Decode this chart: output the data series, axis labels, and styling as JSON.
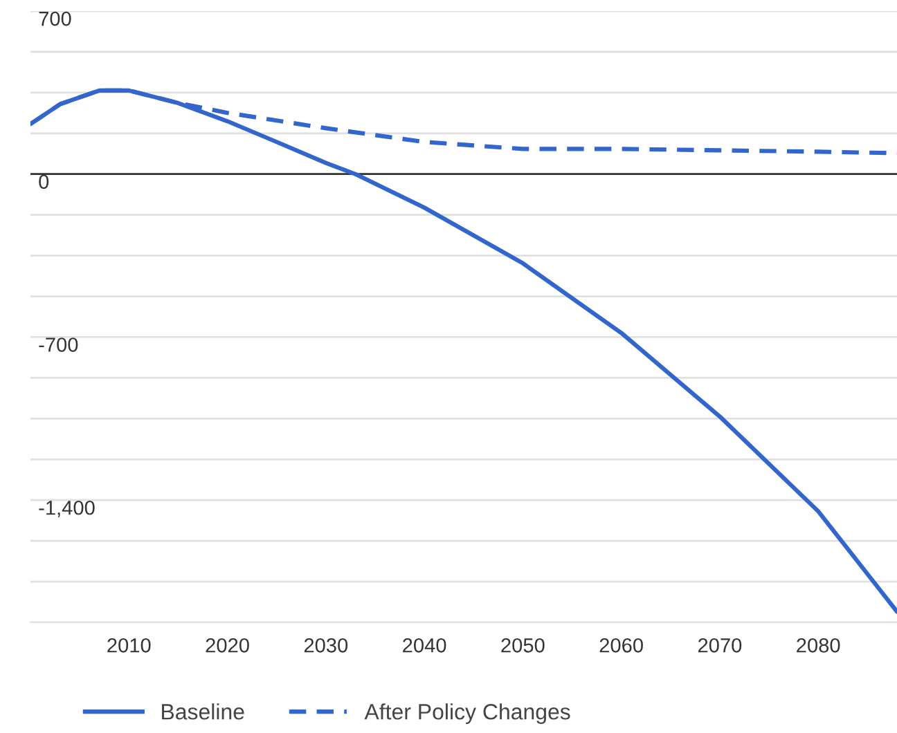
{
  "chart_data": {
    "type": "line",
    "x": [
      2000,
      2003,
      2007,
      2010,
      2015,
      2020,
      2025,
      2030,
      2033,
      2040,
      2050,
      2060,
      2070,
      2080,
      2088
    ],
    "series": [
      {
        "name": "Baseline",
        "color": "#3366cc",
        "line_style": "solid",
        "values": [
          215,
          300,
          359,
          359,
          305,
          227,
          138,
          48,
          0,
          -144,
          -383,
          -682,
          -1041,
          -1448,
          -1879
        ]
      },
      {
        "name": "After Policy Changes",
        "color": "#3366cc",
        "line_style": "dashed",
        "x": [
          2000,
          2003,
          2007,
          2010,
          2015,
          2020,
          2030,
          2040,
          2050,
          2060,
          2070,
          2080,
          2088
        ],
        "values": [
          215,
          300,
          359,
          359,
          305,
          263,
          197,
          138,
          108,
          108,
          102,
          96,
          90
        ]
      }
    ],
    "xlim": [
      2000,
      2088
    ],
    "xticks": [
      2010,
      2020,
      2030,
      2040,
      2050,
      2060,
      2070,
      2080
    ],
    "ylim": [
      -1925,
      700
    ],
    "yticks": [
      {
        "value": 700,
        "label": "700"
      },
      {
        "value": 525,
        "label": null
      },
      {
        "value": 350,
        "label": null
      },
      {
        "value": 175,
        "label": null
      },
      {
        "value": 0,
        "label": "0"
      },
      {
        "value": -175,
        "label": null
      },
      {
        "value": -350,
        "label": null
      },
      {
        "value": -525,
        "label": null
      },
      {
        "value": -700,
        "label": "-700"
      },
      {
        "value": -875,
        "label": null
      },
      {
        "value": -1050,
        "label": null
      },
      {
        "value": -1225,
        "label": null
      },
      {
        "value": -1400,
        "label": "-1,400"
      },
      {
        "value": -1575,
        "label": null
      },
      {
        "value": -1750,
        "label": null
      },
      {
        "value": -1925,
        "label": null
      }
    ],
    "ref_lines": [
      {
        "axis": "y",
        "value": 0,
        "color": "#333333"
      }
    ],
    "grid": "y",
    "legend": "bottom"
  }
}
